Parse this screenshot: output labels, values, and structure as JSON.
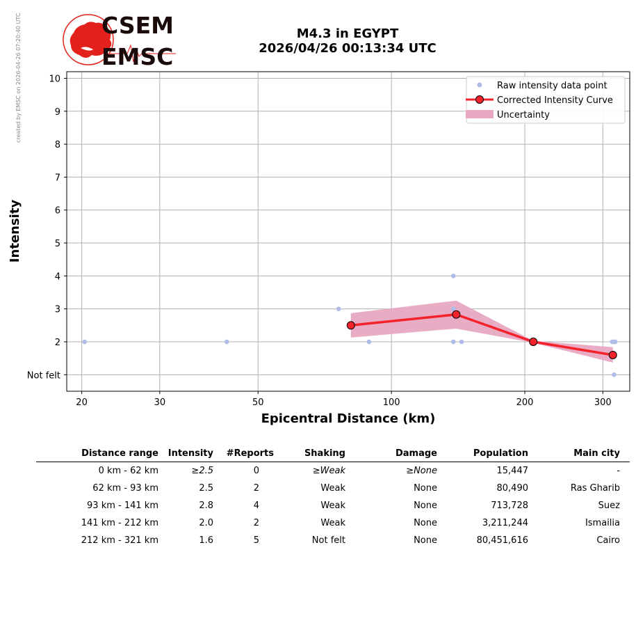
{
  "side_note": "created by EMSC on 2026-04-26 07:20:40 UTC",
  "logo": {
    "line1": "CSEM",
    "line2": "EMSC",
    "color": "#e3211c"
  },
  "title": {
    "line1": "M4.3 in EGYPT",
    "line2": "2026/04/26 00:13:34 UTC"
  },
  "chart_data": {
    "type": "scatter",
    "xlabel": "Epicentral Distance (km)",
    "ylabel": "Intensity",
    "xscale": "log",
    "xlim": [
      18.5,
      345
    ],
    "ylim": [
      0.5,
      10.2
    ],
    "xticks": [
      20,
      30,
      50,
      100,
      200,
      300
    ],
    "xtick_labels": [
      "20",
      "30",
      "50",
      "100",
      "200",
      "300"
    ],
    "yticks": [
      1,
      2,
      3,
      4,
      5,
      6,
      7,
      8,
      9,
      10
    ],
    "ytick_labels": [
      "Not felt",
      "2",
      "3",
      "4",
      "5",
      "6",
      "7",
      "8",
      "9",
      "10"
    ],
    "grid": true,
    "legend_position": "top-right",
    "legend": [
      "Raw intensity data point",
      "Corrected Intensity Curve",
      "Uncertainty"
    ],
    "colors": {
      "raw": "#aebce8",
      "curve": "#f4222b",
      "uncertainty": "#e8a8c2"
    },
    "raw_points": [
      {
        "x": 20.3,
        "y": 2
      },
      {
        "x": 42.5,
        "y": 2
      },
      {
        "x": 76,
        "y": 3
      },
      {
        "x": 89,
        "y": 2
      },
      {
        "x": 138,
        "y": 4
      },
      {
        "x": 138,
        "y": 3
      },
      {
        "x": 138,
        "y": 2
      },
      {
        "x": 144,
        "y": 2
      },
      {
        "x": 315,
        "y": 2
      },
      {
        "x": 318,
        "y": 2
      },
      {
        "x": 320,
        "y": 2
      },
      {
        "x": 318,
        "y": 1
      }
    ],
    "curve": [
      {
        "x": 81,
        "y": 2.5
      },
      {
        "x": 140,
        "y": 2.83
      },
      {
        "x": 209,
        "y": 2.0
      },
      {
        "x": 316,
        "y": 1.6
      }
    ],
    "uncertainty_band": {
      "x": [
        81,
        140,
        209,
        316
      ],
      "upper": [
        2.87,
        3.25,
        2.03,
        1.84
      ],
      "lower": [
        2.13,
        2.4,
        1.97,
        1.37
      ]
    }
  },
  "table": {
    "headers": [
      "Distance range",
      "Intensity",
      "#Reports",
      "Shaking",
      "Damage",
      "Population",
      "Main city"
    ],
    "rows": [
      [
        "0 km -   62 km",
        "≥2.5",
        "0",
        "≥Weak",
        "≥None",
        "15,447",
        "-"
      ],
      [
        "62 km -   93 km",
        "2.5",
        "2",
        "Weak",
        "None",
        "80,490",
        "Ras Gharib"
      ],
      [
        "93 km -  141 km",
        "2.8",
        "4",
        "Weak",
        "None",
        "713,728",
        "Suez"
      ],
      [
        "141 km -  212 km",
        "2.0",
        "2",
        "Weak",
        "None",
        "3,211,244",
        "Ismailia"
      ],
      [
        "212 km -  321 km",
        "1.6",
        "5",
        "Not felt",
        "None",
        "80,451,616",
        "Cairo"
      ]
    ]
  }
}
